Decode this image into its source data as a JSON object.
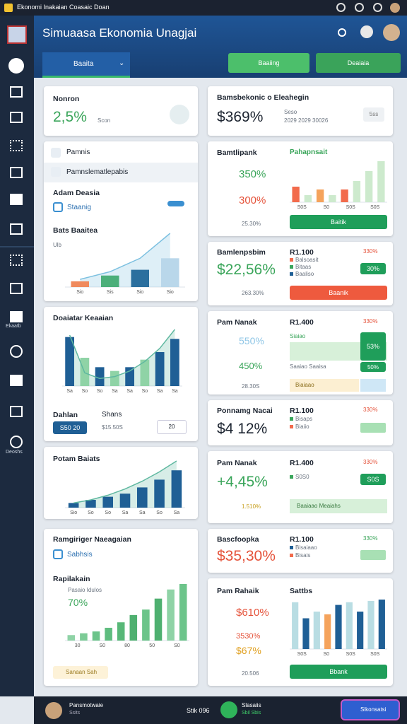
{
  "status_bar": {
    "title": "Ekonomi Inakaian Coasaic Doan"
  },
  "header": {
    "title": "Simuaasa Ekonomia Unagjai",
    "tab": "Baaita",
    "actions": [
      "Baaiing",
      "Deaiaia"
    ]
  },
  "sidebar": {
    "items": [
      "Ekaatb",
      "Deoshs"
    ]
  },
  "left": {
    "summary": {
      "label": "Nonron",
      "value": "2,5%",
      "note": "Scon"
    },
    "filters": {
      "rows": [
        "Pamnis",
        "Pamnslematlepabis"
      ],
      "section": "Adam Deasia",
      "toggle": "Staanig",
      "chart": {
        "title": "Bats Baaitea",
        "subtitle": "Ulb",
        "labels": [
          "Sio",
          "Sis",
          "Sio",
          "Sio"
        ],
        "values": [
          6,
          12,
          18,
          30
        ],
        "colors": [
          "#f08a5d",
          "#4caf7a",
          "#2b6f9e",
          "#b9d7ea"
        ],
        "line": [
          8,
          16,
          30,
          56
        ],
        "line_color": "#7cc0e0"
      }
    },
    "distribution": {
      "title": "Doaiatar Keaaian",
      "chart": {
        "labels": [
          "Sa",
          "So",
          "So",
          "Sa",
          "Sa",
          "So",
          "Sa",
          "Sa"
        ],
        "values": [
          52,
          30,
          20,
          16,
          20,
          28,
          36,
          50
        ],
        "colors": [
          "#1f5f95",
          "#8fd3a6",
          "#1f5f95",
          "#8fd3a6",
          "#1f5f95",
          "#8fd3a6",
          "#1f5f95",
          "#1f5f95"
        ],
        "line": [
          54,
          14,
          8,
          10,
          16,
          26,
          40,
          60
        ],
        "line_color": "#5fb8a0"
      },
      "fields": [
        "Dahlan",
        "Shans"
      ],
      "button": "S50 20",
      "input": "$15.50S",
      "stepper": "20"
    },
    "trend": {
      "title": "Potam Baiats",
      "chart": {
        "labels": [
          "Sio",
          "So",
          "So",
          "Sa",
          "Sa",
          "So",
          "Sa"
        ],
        "values": [
          6,
          10,
          14,
          18,
          26,
          36,
          48
        ],
        "colors": [
          "#1f5f95",
          "#1f5f95",
          "#1f5f95",
          "#1f5f95",
          "#1f5f95",
          "#1f5f95",
          "#1f5f95"
        ],
        "line": [
          6,
          10,
          16,
          24,
          34,
          46,
          60
        ],
        "line_color": "#5fb8a0"
      }
    },
    "growth": {
      "title": "Ramgiriger Naeagaian",
      "option": "Sabhsis",
      "subtitle": "Rapilakain",
      "caption": "Pasaio Idulos",
      "value": "70%",
      "chart": {
        "labels": [
          "30",
          "S0",
          "80",
          "50",
          "S0"
        ],
        "values": [
          6,
          8,
          10,
          14,
          20,
          28,
          34,
          46,
          56,
          62
        ],
        "colors": [
          "#8fd3a6",
          "#7ccb96",
          "#6cc48a",
          "#5fbd7f",
          "#58b878",
          "#4fb070",
          "#6cc48a",
          "#4fb070",
          "#8fd3a6",
          "#6cc48a"
        ]
      },
      "tag": "Sanaan Sah"
    }
  },
  "right": {
    "r1": {
      "title": "Bamsbekonic o Eleahegin",
      "value": "$369%",
      "note1": "Seso",
      "note2": "2029 2029 30026",
      "badge": "5ss"
    },
    "r2": {
      "title": "Bamtlipank",
      "rows": [
        "350%",
        "300%",
        "25.30%"
      ],
      "chart": {
        "title": "Pahapnsait",
        "labels": [
          "S0S",
          "S0",
          "S0S",
          "S0S"
        ],
        "values": [
          22,
          10,
          18,
          10,
          18,
          30,
          44,
          58
        ],
        "colors": [
          "#f26b4c",
          "#cdeacd",
          "#f5a35c",
          "#cdeacd",
          "#f26b4c",
          "#cdeacd",
          "#cdeacd",
          "#cdeacd"
        ]
      },
      "button": "Baitik"
    },
    "r3": {
      "title": "Bamlenpsbim",
      "value": "$22,56%",
      "note": "263.30%",
      "side_title": "R1.100",
      "side_value": "330%",
      "legend": [
        "Balsoasit",
        "Bitaas",
        "Baaliso"
      ],
      "badge": "30%",
      "button": "Baanik"
    },
    "r4": {
      "title": "Pam Nanak",
      "rows": [
        "550%",
        "450%",
        "28.30S"
      ],
      "side_title": "R1.400",
      "side_value": "330%",
      "bar_label": "Siaiao",
      "legend": "Saaiao Saaisa",
      "badges": [
        "53%",
        "50%"
      ],
      "footer": "Biaiaao"
    },
    "r5": {
      "title": "Ponnamg Nacai",
      "value": "$4 12%",
      "side_title": "R1.100",
      "side_value": "330%",
      "legend": [
        "Bisaps",
        "Biaiio"
      ]
    },
    "r6": {
      "title": "Pam Nanak",
      "value": "+4,45%",
      "note": "1.510%",
      "side_title": "R1.400",
      "side_value": "330%",
      "legend": "S0S0",
      "badge": "S0S",
      "bar": "Baaiaao Meaiahs"
    },
    "r7": {
      "title": "Bascfoopka",
      "value": "$35,30%",
      "side_title": "R1.100",
      "side_value": "330%",
      "legend": [
        "Bisaiaao",
        "Bisais"
      ]
    },
    "r8": {
      "title": "Pam Rahaik",
      "rows": [
        "$610%",
        "3530%",
        "$67%"
      ],
      "note": "20.506",
      "chart": {
        "title": "Sattbs",
        "labels": [
          "S0S",
          "S0",
          "S0S",
          "S0S"
        ],
        "values": [
          70,
          46,
          56,
          52,
          66,
          70,
          56,
          72,
          74
        ],
        "colors": [
          "#b9dde3",
          "#1f5f95",
          "#b9dde3",
          "#f5a35c",
          "#1f5f95",
          "#b9dde3",
          "#1f5f95",
          "#b9dde3",
          "#1f5f95"
        ]
      },
      "button": "Bbank"
    }
  },
  "bottom": {
    "user": "Pansmotwaie",
    "role": "Ssits",
    "stat": "Stik 096",
    "status_title": "Slasaiis",
    "status_sub": "Sbil Sbis",
    "action": "Slkonsatsi"
  }
}
